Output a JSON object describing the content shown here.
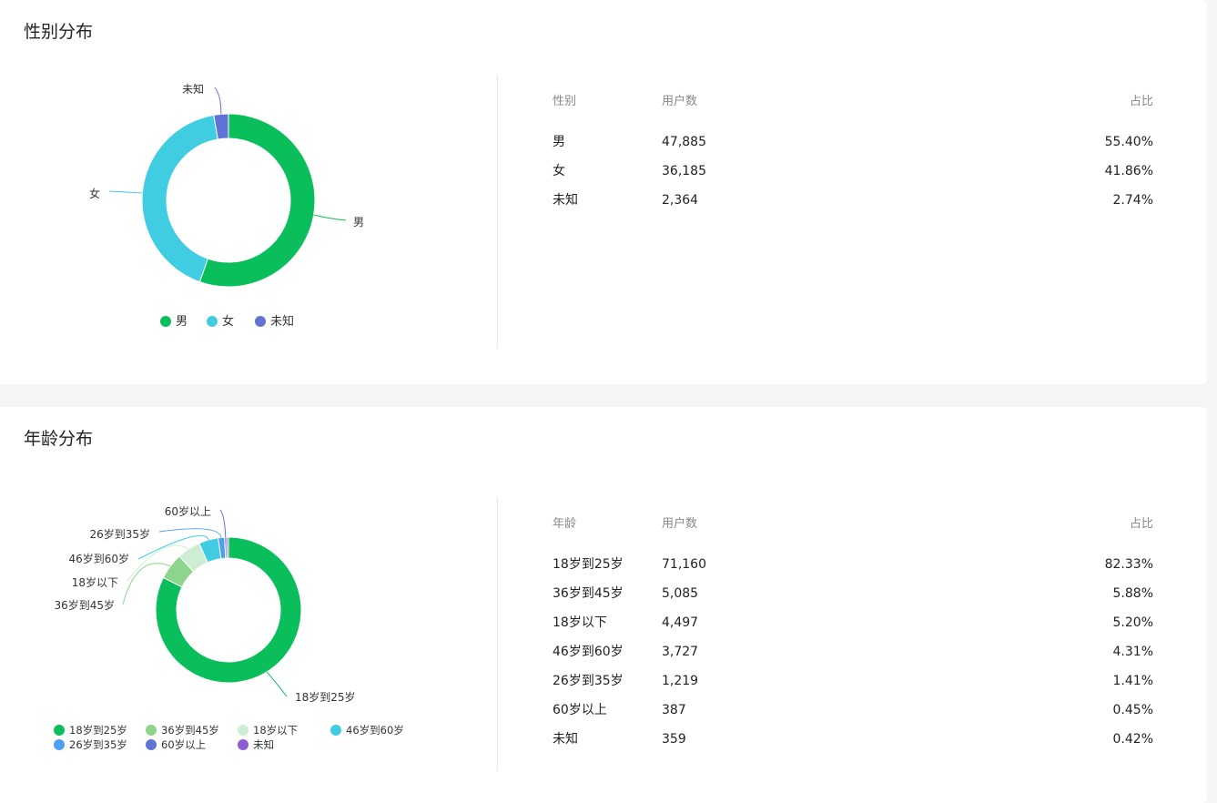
{
  "gender": {
    "title": "性别分布",
    "headers": [
      "性别",
      "用户数",
      "占比"
    ],
    "rows": [
      {
        "label": "男",
        "count": "47,885",
        "pct": "55.40%",
        "value": 47885,
        "color": "#0abf5b"
      },
      {
        "label": "女",
        "count": "36,185",
        "pct": "41.86%",
        "value": 36185,
        "color": "#40cde2"
      },
      {
        "label": "未知",
        "count": "2,364",
        "pct": "2.74%",
        "value": 2364,
        "color": "#6173d4"
      }
    ]
  },
  "age": {
    "title": "年龄分布",
    "headers": [
      "年龄",
      "用户数",
      "占比"
    ],
    "rows": [
      {
        "label": "18岁到25岁",
        "count": "71,160",
        "pct": "82.33%",
        "value": 71160,
        "color": "#0abf5b"
      },
      {
        "label": "36岁到45岁",
        "count": "5,085",
        "pct": "5.88%",
        "value": 5085,
        "color": "#8dd48c"
      },
      {
        "label": "18岁以下",
        "count": "4,497",
        "pct": "5.20%",
        "value": 4497,
        "color": "#cdeed2"
      },
      {
        "label": "46岁到60岁",
        "count": "3,727",
        "pct": "4.31%",
        "value": 3727,
        "color": "#40cde2"
      },
      {
        "label": "26岁到35岁",
        "count": "1,219",
        "pct": "1.41%",
        "value": 1219,
        "color": "#4e9ff0"
      },
      {
        "label": "60岁以上",
        "count": "387",
        "pct": "0.45%",
        "value": 387,
        "color": "#6173d4"
      },
      {
        "label": "未知",
        "count": "359",
        "pct": "0.42%",
        "value": 359,
        "color": "#8c5ed4"
      }
    ]
  },
  "chart_data": [
    {
      "type": "pie",
      "categories": [
        "男",
        "女",
        "未知"
      ],
      "values": [
        47885,
        36185,
        2364
      ],
      "legend": "bottom"
    },
    {
      "type": "pie",
      "categories": [
        "18岁到25岁",
        "36岁到45岁",
        "18岁以下",
        "46岁到60岁",
        "26岁到35岁",
        "60岁以上",
        "未知"
      ],
      "values": [
        71160,
        5085,
        4497,
        3727,
        1219,
        387,
        359
      ],
      "legend": "bottom"
    }
  ]
}
